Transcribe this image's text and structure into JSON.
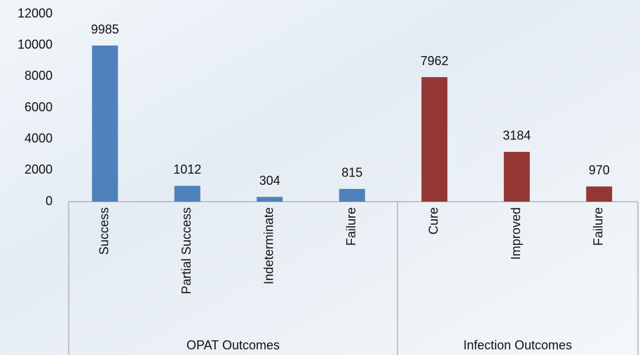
{
  "chart_data": {
    "type": "grouped-bar",
    "groups": [
      {
        "name": "OPAT Outcomes",
        "color": "#4f81bd",
        "categories": [
          "Success",
          "Partial Success",
          "Indeterminate",
          "Failure"
        ],
        "values": [
          9985,
          1012,
          304,
          815
        ]
      },
      {
        "name": "Infection Outcomes",
        "color": "#943634",
        "categories": [
          "Cure",
          "Improved",
          "Failure"
        ],
        "values": [
          7962,
          3184,
          970
        ]
      }
    ],
    "ylim": [
      0,
      12000
    ],
    "yticks": [
      0,
      2000,
      4000,
      6000,
      8000,
      10000,
      12000
    ],
    "grid": false
  }
}
